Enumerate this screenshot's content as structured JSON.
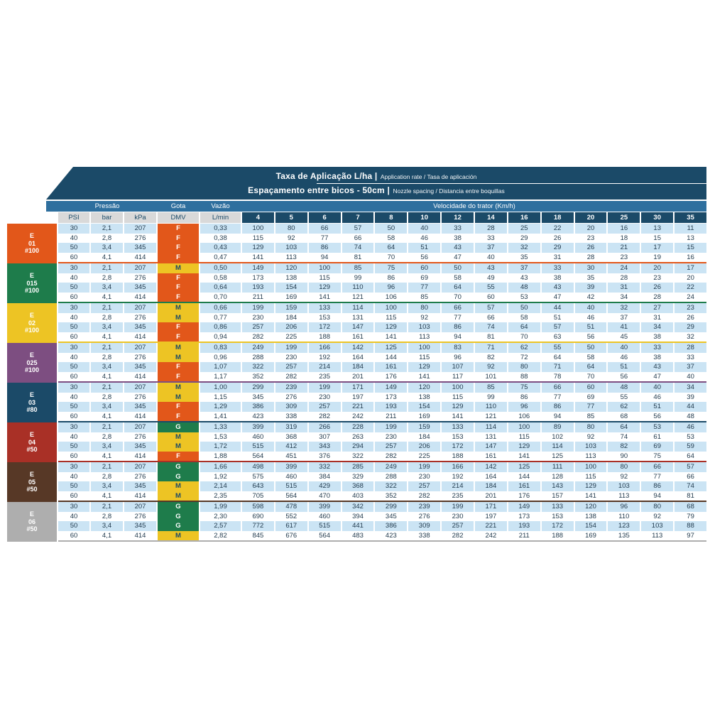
{
  "header": {
    "title_bold": "Taxa de Aplicação L/ha |",
    "title_note": "Application rate / Tasa de aplicación",
    "subtitle_bold": "Espaçamento entre bicos - 50cm |",
    "subtitle_note": "Nozzle spacing / Distancia entre boquillas",
    "pressure_label": "Pressão",
    "droplet_label": "Gota",
    "flow_label": "Vazão",
    "speed_label": "Velocidade do trator (Km/h)",
    "subheaders": [
      "PSI",
      "bar",
      "kPa",
      "DMV",
      "L/min"
    ],
    "speeds": [
      "4",
      "5",
      "6",
      "7",
      "8",
      "10",
      "12",
      "14",
      "16",
      "18",
      "20",
      "25",
      "30",
      "35"
    ]
  },
  "colors": {
    "banner_navy": "#1B4A68",
    "band_blue": "#2E6F9E",
    "subheader_gray": "#D9D9D9",
    "row_blue": "#CBE4F4",
    "row_white": "#FFFFFF",
    "text_navy": "#233C4F",
    "dmv": {
      "F": {
        "bg": "#E2571A",
        "fg": "#FFFFFF"
      },
      "M": {
        "bg": "#EDC424",
        "fg": "#1B4A68"
      },
      "G": {
        "bg": "#1E7C4B",
        "fg": "#FFFFFF"
      }
    }
  },
  "groups": [
    {
      "id": "e-01-100",
      "label_lines": [
        "E",
        "01",
        "#100"
      ],
      "color": "#E2571A",
      "rows": [
        {
          "psi": "30",
          "bar": "2,1",
          "kpa": "207",
          "dmv": "F",
          "flow": "0,33",
          "rates": [
            "100",
            "80",
            "66",
            "57",
            "50",
            "40",
            "33",
            "28",
            "25",
            "22",
            "20",
            "16",
            "13",
            "11"
          ]
        },
        {
          "psi": "40",
          "bar": "2,8",
          "kpa": "276",
          "dmv": "F",
          "flow": "0,38",
          "rates": [
            "115",
            "92",
            "77",
            "66",
            "58",
            "46",
            "38",
            "33",
            "29",
            "26",
            "23",
            "18",
            "15",
            "13"
          ]
        },
        {
          "psi": "50",
          "bar": "3,4",
          "kpa": "345",
          "dmv": "F",
          "flow": "0,43",
          "rates": [
            "129",
            "103",
            "86",
            "74",
            "64",
            "51",
            "43",
            "37",
            "32",
            "29",
            "26",
            "21",
            "17",
            "15"
          ]
        },
        {
          "psi": "60",
          "bar": "4,1",
          "kpa": "414",
          "dmv": "F",
          "flow": "0,47",
          "rates": [
            "141",
            "113",
            "94",
            "81",
            "70",
            "56",
            "47",
            "40",
            "35",
            "31",
            "28",
            "23",
            "19",
            "16"
          ]
        }
      ]
    },
    {
      "id": "e-015-100",
      "label_lines": [
        "E",
        "015",
        "#100"
      ],
      "color": "#1E7C4B",
      "rows": [
        {
          "psi": "30",
          "bar": "2,1",
          "kpa": "207",
          "dmv": "M",
          "flow": "0,50",
          "rates": [
            "149",
            "120",
            "100",
            "85",
            "75",
            "60",
            "50",
            "43",
            "37",
            "33",
            "30",
            "24",
            "20",
            "17"
          ]
        },
        {
          "psi": "40",
          "bar": "2,8",
          "kpa": "276",
          "dmv": "F",
          "flow": "0,58",
          "rates": [
            "173",
            "138",
            "115",
            "99",
            "86",
            "69",
            "58",
            "49",
            "43",
            "38",
            "35",
            "28",
            "23",
            "20"
          ]
        },
        {
          "psi": "50",
          "bar": "3,4",
          "kpa": "345",
          "dmv": "F",
          "flow": "0,64",
          "rates": [
            "193",
            "154",
            "129",
            "110",
            "96",
            "77",
            "64",
            "55",
            "48",
            "43",
            "39",
            "31",
            "26",
            "22"
          ]
        },
        {
          "psi": "60",
          "bar": "4,1",
          "kpa": "414",
          "dmv": "F",
          "flow": "0,70",
          "rates": [
            "211",
            "169",
            "141",
            "121",
            "106",
            "85",
            "70",
            "60",
            "53",
            "47",
            "42",
            "34",
            "28",
            "24"
          ]
        }
      ]
    },
    {
      "id": "e-02-100",
      "label_lines": [
        "E",
        "02",
        "#100"
      ],
      "color": "#EDC424",
      "rows": [
        {
          "psi": "30",
          "bar": "2,1",
          "kpa": "207",
          "dmv": "M",
          "flow": "0,66",
          "rates": [
            "199",
            "159",
            "133",
            "114",
            "100",
            "80",
            "66",
            "57",
            "50",
            "44",
            "40",
            "32",
            "27",
            "23"
          ]
        },
        {
          "psi": "40",
          "bar": "2,8",
          "kpa": "276",
          "dmv": "M",
          "flow": "0,77",
          "rates": [
            "230",
            "184",
            "153",
            "131",
            "115",
            "92",
            "77",
            "66",
            "58",
            "51",
            "46",
            "37",
            "31",
            "26"
          ]
        },
        {
          "psi": "50",
          "bar": "3,4",
          "kpa": "345",
          "dmv": "F",
          "flow": "0,86",
          "rates": [
            "257",
            "206",
            "172",
            "147",
            "129",
            "103",
            "86",
            "74",
            "64",
            "57",
            "51",
            "41",
            "34",
            "29"
          ]
        },
        {
          "psi": "60",
          "bar": "4,1",
          "kpa": "414",
          "dmv": "F",
          "flow": "0,94",
          "rates": [
            "282",
            "225",
            "188",
            "161",
            "141",
            "113",
            "94",
            "81",
            "70",
            "63",
            "56",
            "45",
            "38",
            "32"
          ]
        }
      ]
    },
    {
      "id": "e-025-100",
      "label_lines": [
        "E",
        "025",
        "#100"
      ],
      "color": "#7D4E81",
      "rows": [
        {
          "psi": "30",
          "bar": "2,1",
          "kpa": "207",
          "dmv": "M",
          "flow": "0,83",
          "rates": [
            "249",
            "199",
            "166",
            "142",
            "125",
            "100",
            "83",
            "71",
            "62",
            "55",
            "50",
            "40",
            "33",
            "28"
          ]
        },
        {
          "psi": "40",
          "bar": "2,8",
          "kpa": "276",
          "dmv": "M",
          "flow": "0,96",
          "rates": [
            "288",
            "230",
            "192",
            "164",
            "144",
            "115",
            "96",
            "82",
            "72",
            "64",
            "58",
            "46",
            "38",
            "33"
          ]
        },
        {
          "psi": "50",
          "bar": "3,4",
          "kpa": "345",
          "dmv": "F",
          "flow": "1,07",
          "rates": [
            "322",
            "257",
            "214",
            "184",
            "161",
            "129",
            "107",
            "92",
            "80",
            "71",
            "64",
            "51",
            "43",
            "37"
          ]
        },
        {
          "psi": "60",
          "bar": "4,1",
          "kpa": "414",
          "dmv": "F",
          "flow": "1,17",
          "rates": [
            "352",
            "282",
            "235",
            "201",
            "176",
            "141",
            "117",
            "101",
            "88",
            "78",
            "70",
            "56",
            "47",
            "40"
          ]
        }
      ]
    },
    {
      "id": "e-03-80",
      "label_lines": [
        "E",
        "03",
        "#80"
      ],
      "color": "#1B4A68",
      "rows": [
        {
          "psi": "30",
          "bar": "2,1",
          "kpa": "207",
          "dmv": "M",
          "flow": "1,00",
          "rates": [
            "299",
            "239",
            "199",
            "171",
            "149",
            "120",
            "100",
            "85",
            "75",
            "66",
            "60",
            "48",
            "40",
            "34"
          ]
        },
        {
          "psi": "40",
          "bar": "2,8",
          "kpa": "276",
          "dmv": "M",
          "flow": "1,15",
          "rates": [
            "345",
            "276",
            "230",
            "197",
            "173",
            "138",
            "115",
            "99",
            "86",
            "77",
            "69",
            "55",
            "46",
            "39"
          ]
        },
        {
          "psi": "50",
          "bar": "3,4",
          "kpa": "345",
          "dmv": "F",
          "flow": "1,29",
          "rates": [
            "386",
            "309",
            "257",
            "221",
            "193",
            "154",
            "129",
            "110",
            "96",
            "86",
            "77",
            "62",
            "51",
            "44"
          ]
        },
        {
          "psi": "60",
          "bar": "4,1",
          "kpa": "414",
          "dmv": "F",
          "flow": "1,41",
          "rates": [
            "423",
            "338",
            "282",
            "242",
            "211",
            "169",
            "141",
            "121",
            "106",
            "94",
            "85",
            "68",
            "56",
            "48"
          ]
        }
      ]
    },
    {
      "id": "e-04-50",
      "label_lines": [
        "E",
        "04",
        "#50"
      ],
      "color": "#A93026",
      "rows": [
        {
          "psi": "30",
          "bar": "2,1",
          "kpa": "207",
          "dmv": "G",
          "flow": "1,33",
          "rates": [
            "399",
            "319",
            "266",
            "228",
            "199",
            "159",
            "133",
            "114",
            "100",
            "89",
            "80",
            "64",
            "53",
            "46"
          ]
        },
        {
          "psi": "40",
          "bar": "2,8",
          "kpa": "276",
          "dmv": "M",
          "flow": "1,53",
          "rates": [
            "460",
            "368",
            "307",
            "263",
            "230",
            "184",
            "153",
            "131",
            "115",
            "102",
            "92",
            "74",
            "61",
            "53"
          ]
        },
        {
          "psi": "50",
          "bar": "3,4",
          "kpa": "345",
          "dmv": "M",
          "flow": "1,72",
          "rates": [
            "515",
            "412",
            "343",
            "294",
            "257",
            "206",
            "172",
            "147",
            "129",
            "114",
            "103",
            "82",
            "69",
            "59"
          ]
        },
        {
          "psi": "60",
          "bar": "4,1",
          "kpa": "414",
          "dmv": "F",
          "flow": "1,88",
          "rates": [
            "564",
            "451",
            "376",
            "322",
            "282",
            "225",
            "188",
            "161",
            "141",
            "125",
            "113",
            "90",
            "75",
            "64"
          ]
        }
      ]
    },
    {
      "id": "e-05-50",
      "label_lines": [
        "E",
        "05",
        "#50"
      ],
      "color": "#573826",
      "rows": [
        {
          "psi": "30",
          "bar": "2,1",
          "kpa": "207",
          "dmv": "G",
          "flow": "1,66",
          "rates": [
            "498",
            "399",
            "332",
            "285",
            "249",
            "199",
            "166",
            "142",
            "125",
            "111",
            "100",
            "80",
            "66",
            "57"
          ]
        },
        {
          "psi": "40",
          "bar": "2,8",
          "kpa": "276",
          "dmv": "G",
          "flow": "1,92",
          "rates": [
            "575",
            "460",
            "384",
            "329",
            "288",
            "230",
            "192",
            "164",
            "144",
            "128",
            "115",
            "92",
            "77",
            "66"
          ]
        },
        {
          "psi": "50",
          "bar": "3,4",
          "kpa": "345",
          "dmv": "M",
          "flow": "2,14",
          "rates": [
            "643",
            "515",
            "429",
            "368",
            "322",
            "257",
            "214",
            "184",
            "161",
            "143",
            "129",
            "103",
            "86",
            "74"
          ]
        },
        {
          "psi": "60",
          "bar": "4,1",
          "kpa": "414",
          "dmv": "M",
          "flow": "2,35",
          "rates": [
            "705",
            "564",
            "470",
            "403",
            "352",
            "282",
            "235",
            "201",
            "176",
            "157",
            "141",
            "113",
            "94",
            "81"
          ]
        }
      ]
    },
    {
      "id": "e-06-50",
      "label_lines": [
        "E",
        "06",
        "#50"
      ],
      "color": "#AEAEAE",
      "rows": [
        {
          "psi": "30",
          "bar": "2,1",
          "kpa": "207",
          "dmv": "G",
          "flow": "1,99",
          "rates": [
            "598",
            "478",
            "399",
            "342",
            "299",
            "239",
            "199",
            "171",
            "149",
            "133",
            "120",
            "96",
            "80",
            "68"
          ]
        },
        {
          "psi": "40",
          "bar": "2,8",
          "kpa": "276",
          "dmv": "G",
          "flow": "2,30",
          "rates": [
            "690",
            "552",
            "460",
            "394",
            "345",
            "276",
            "230",
            "197",
            "173",
            "153",
            "138",
            "110",
            "92",
            "79"
          ]
        },
        {
          "psi": "50",
          "bar": "3,4",
          "kpa": "345",
          "dmv": "G",
          "flow": "2,57",
          "rates": [
            "772",
            "617",
            "515",
            "441",
            "386",
            "309",
            "257",
            "221",
            "193",
            "172",
            "154",
            "123",
            "103",
            "88"
          ]
        },
        {
          "psi": "60",
          "bar": "4,1",
          "kpa": "414",
          "dmv": "M",
          "flow": "2,82",
          "rates": [
            "845",
            "676",
            "564",
            "483",
            "423",
            "338",
            "282",
            "242",
            "211",
            "188",
            "169",
            "135",
            "113",
            "97"
          ]
        }
      ]
    }
  ]
}
